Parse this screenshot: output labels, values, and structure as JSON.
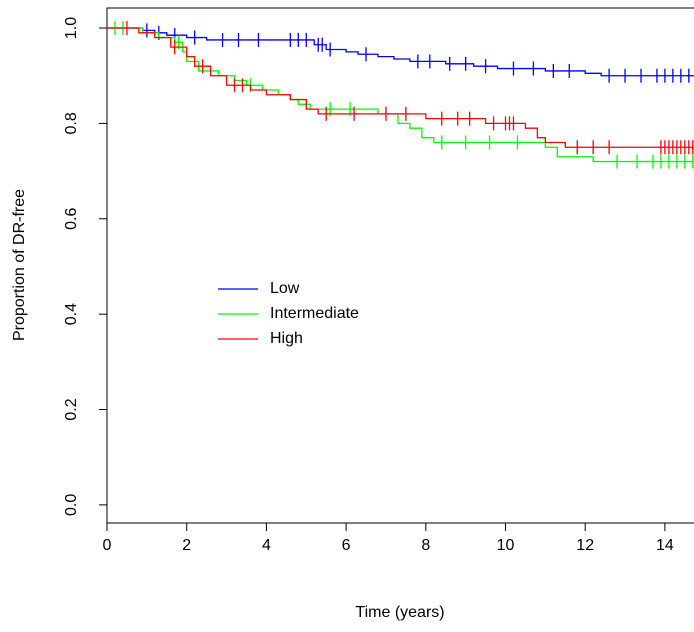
{
  "chart_data": {
    "type": "km",
    "xlabel": "Time (years)",
    "ylabel": "Proportion of DR-free",
    "xlim": [
      0,
      14.73
    ],
    "ylim": [
      -0.038,
      1.042
    ],
    "xticks": [
      0,
      2,
      4,
      6,
      8,
      10,
      12,
      14
    ],
    "yticks": [
      {
        "value": 0,
        "label": "0.0"
      },
      {
        "value": 0.2,
        "label": "0.2"
      },
      {
        "value": 0.4,
        "label": "0.4"
      },
      {
        "value": 0.6,
        "label": "0.6"
      },
      {
        "value": 0.8,
        "label": "0.8"
      },
      {
        "value": 1,
        "label": "1.0"
      }
    ],
    "series": [
      {
        "name": "Low",
        "color": "#0000ff",
        "x": [
          0,
          0.9,
          1.2,
          1.5,
          2.0,
          2.5,
          5.2,
          5.5,
          6.0,
          6.3,
          6.8,
          7.2,
          7.6,
          8.5,
          9.2,
          9.8,
          11.0,
          12.0,
          12.4,
          14.73
        ],
        "values": [
          1.0,
          0.995,
          0.99,
          0.985,
          0.98,
          0.975,
          0.965,
          0.955,
          0.95,
          0.945,
          0.94,
          0.935,
          0.93,
          0.925,
          0.92,
          0.915,
          0.91,
          0.905,
          0.9,
          0.9
        ],
        "censored": [
          1.0,
          1.3,
          1.7,
          2.2,
          2.9,
          3.3,
          3.8,
          4.6,
          4.8,
          5.0,
          5.3,
          5.4,
          5.6,
          6.5,
          7.8,
          8.1,
          8.6,
          9.0,
          9.5,
          10.2,
          10.7,
          11.2,
          11.6,
          12.6,
          13.0,
          13.4,
          13.8,
          14.0,
          14.2,
          14.4,
          14.6
        ]
      },
      {
        "name": "Intermediate",
        "color": "#00ff00",
        "x": [
          0,
          0.9,
          1.3,
          1.7,
          1.9,
          2.0,
          2.3,
          2.8,
          3.2,
          3.5,
          3.9,
          4.3,
          4.6,
          4.8,
          5.1,
          6.8,
          7.3,
          7.6,
          7.9,
          8.2,
          11.0,
          11.3,
          12.2,
          14.73
        ],
        "values": [
          1.0,
          0.99,
          0.98,
          0.97,
          0.95,
          0.93,
          0.91,
          0.9,
          0.89,
          0.88,
          0.87,
          0.86,
          0.85,
          0.84,
          0.83,
          0.82,
          0.8,
          0.79,
          0.77,
          0.76,
          0.75,
          0.73,
          0.72,
          0.72
        ],
        "censored": [
          0.2,
          0.4,
          1.8,
          3.6,
          5.6,
          6.1,
          8.4,
          9.0,
          9.6,
          10.3,
          12.8,
          13.3,
          13.7,
          13.9,
          14.1,
          14.3,
          14.5,
          14.7
        ]
      },
      {
        "name": "High",
        "color": "#ff0000",
        "x": [
          0,
          0.8,
          1.2,
          1.6,
          2.0,
          2.2,
          2.6,
          3.0,
          3.6,
          4.0,
          4.6,
          5.0,
          5.3,
          8.0,
          9.5,
          10.5,
          10.8,
          11.0,
          11.5,
          14.73
        ],
        "values": [
          1.0,
          0.99,
          0.98,
          0.96,
          0.94,
          0.92,
          0.9,
          0.88,
          0.87,
          0.86,
          0.85,
          0.83,
          0.82,
          0.81,
          0.8,
          0.79,
          0.77,
          0.76,
          0.75,
          0.75
        ],
        "censored": [
          0.5,
          1.7,
          2.4,
          3.2,
          3.4,
          5.5,
          6.2,
          7.0,
          7.5,
          8.4,
          8.8,
          9.1,
          9.7,
          10.0,
          10.1,
          10.2,
          11.8,
          12.2,
          12.6,
          13.9,
          14.0,
          14.1,
          14.2,
          14.3,
          14.4,
          14.5,
          14.6,
          14.7
        ]
      }
    ],
    "legend": "center-left"
  }
}
